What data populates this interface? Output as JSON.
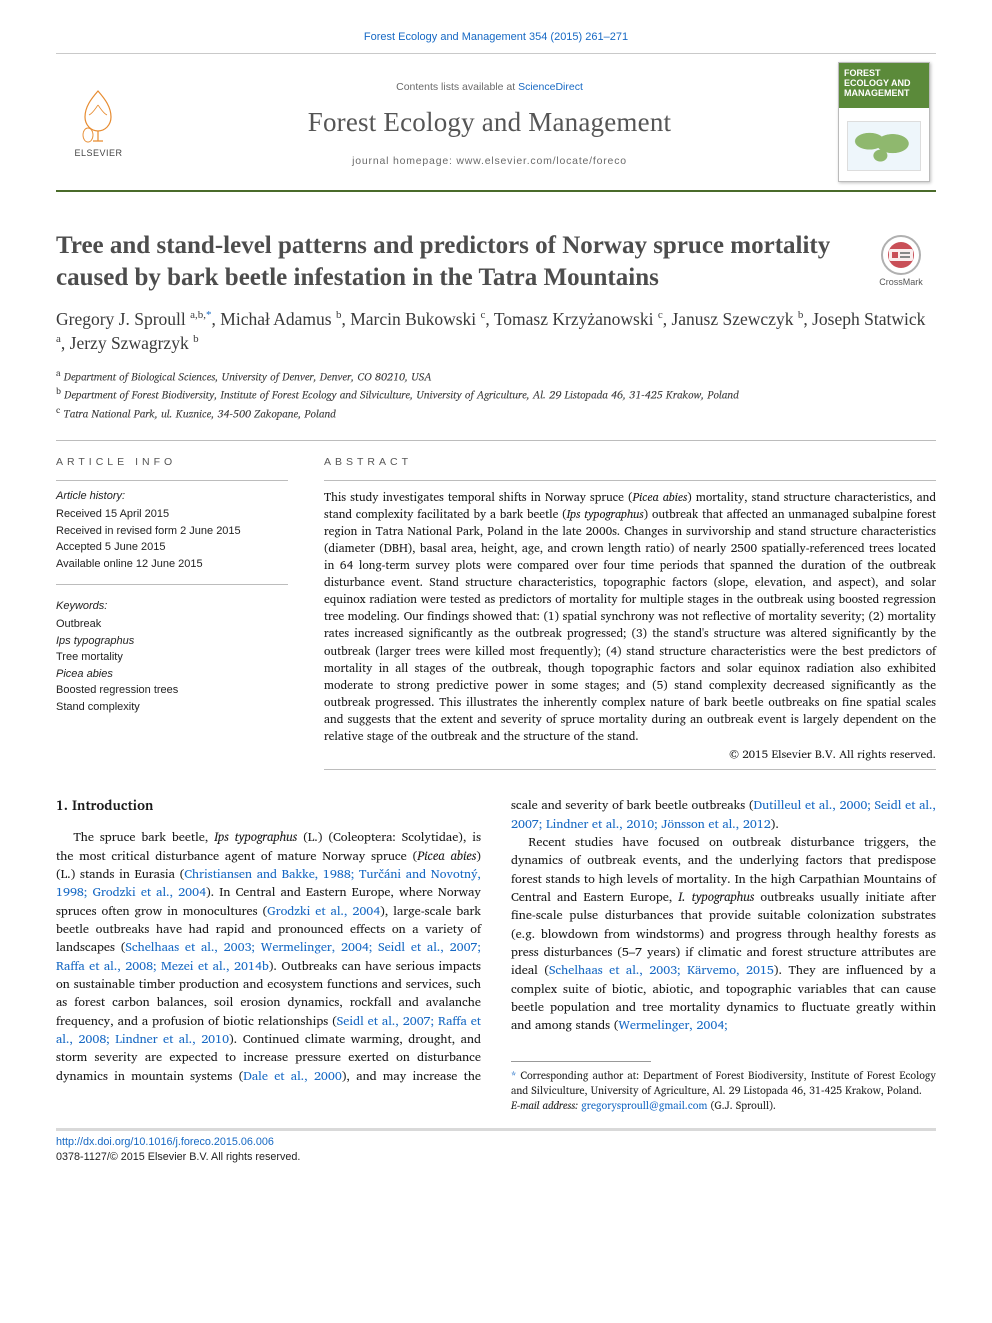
{
  "citation": "Forest Ecology and Management 354 (2015) 261–271",
  "publisher": {
    "name": "ELSEVIER"
  },
  "masthead": {
    "contents_prefix": "Contents lists available at ",
    "contents_link": "ScienceDirect",
    "journal_name": "Forest Ecology and Management",
    "homepage_label": "journal homepage: www.elsevier.com/locate/foreco",
    "cover_title": "FOREST ECOLOGY AND MANAGEMENT"
  },
  "crossmark_label": "CrossMark",
  "title": "Tree and stand-level patterns and predictors of Norway spruce mortality caused by bark beetle infestation in the Tatra Mountains",
  "authors_html": "Gregory J. Sproull <sup>a,b,</sup><sup class='ast'>*</sup>, Michał Adamus <sup>b</sup>, Marcin Bukowski <sup>c</sup>, Tomasz Krzyżanowski <sup>c</sup>, Janusz Szewczyk <sup>b</sup>, Joseph Statwick <sup>a</sup>, Jerzy Szwagrzyk <sup>b</sup>",
  "affiliations": [
    {
      "marker": "a",
      "text": "Department of Biological Sciences, University of Denver, Denver, CO 80210, USA"
    },
    {
      "marker": "b",
      "text": "Department of Forest Biodiversity, Institute of Forest Ecology and Silviculture, University of Agriculture, Al. 29 Listopada 46, 31-425 Krakow, Poland"
    },
    {
      "marker": "c",
      "text": "Tatra National Park, ul. Kuznice, 34-500 Zakopane, Poland"
    }
  ],
  "article_info": {
    "heading": "ARTICLE INFO",
    "history_label": "Article history:",
    "history": [
      "Received 15 April 2015",
      "Received in revised form 2 June 2015",
      "Accepted 5 June 2015",
      "Available online 12 June 2015"
    ],
    "keywords_label": "Keywords:",
    "keywords": [
      "Outbreak",
      "Ips typographus",
      "Tree mortality",
      "Picea abies",
      "Boosted regression trees",
      "Stand complexity"
    ]
  },
  "abstract": {
    "heading": "ABSTRACT",
    "text": "This study investigates temporal shifts in Norway spruce (Picea abies) mortality, stand structure characteristics, and stand complexity facilitated by a bark beetle (Ips typographus) outbreak that affected an unmanaged subalpine forest region in Tatra National Park, Poland in the late 2000s. Changes in survivorship and stand structure characteristics (diameter (DBH), basal area, height, age, and crown length ratio) of nearly 2500 spatially-referenced trees located in 64 long-term survey plots were compared over four time periods that spanned the duration of the outbreak disturbance event. Stand structure characteristics, topographic factors (slope, elevation, and aspect), and solar equinox radiation were tested as predictors of mortality for multiple stages in the outbreak using boosted regression tree modeling. Our findings showed that: (1) spatial synchrony was not reflective of mortality severity; (2) mortality rates increased significantly as the outbreak progressed; (3) the stand's structure was altered significantly by the outbreak (larger trees were killed most frequently); (4) stand structure characteristics were the best predictors of mortality in all stages of the outbreak, though topographic factors and solar equinox radiation also exhibited moderate to strong predictive power in some stages; and (5) stand complexity decreased significantly as the outbreak progressed. This illustrates the inherently complex nature of bark beetle outbreaks on fine spatial scales and suggests that the extent and severity of spruce mortality during an outbreak event is largely dependent on the relative stage of the outbreak and the structure of the stand.",
    "copyright": "© 2015 Elsevier B.V. All rights reserved."
  },
  "body": {
    "section_heading": "1. Introduction",
    "p1_pre": "The spruce bark beetle, ",
    "p1_em1": "Ips typographus",
    "p1_mid1": " (L.) (Coleoptera: Scolytidae), is the most critical disturbance agent of mature Norway spruce (",
    "p1_em2": "Picea abies",
    "p1_mid2": ") (L.) stands in Eurasia (",
    "p1_ref1": "Christiansen and Bakke, 1988; Turčáni and Novotný, 1998; Grodzki et al., 2004",
    "p1_mid3": "). In Central and Eastern Europe, where Norway spruces often grow in monocultures (",
    "p1_ref2": "Grodzki et al., 2004",
    "p1_mid4": "), large-scale bark beetle outbreaks have had rapid and pronounced effects on a variety of landscapes (",
    "p1_ref3": "Schelhaas et al., 2003; Wermelinger, 2004; Seidl et al., 2007; Raffa et al., 2008; Mezei et al., 2014b",
    "p1_mid5": "). Outbreaks can have serious impacts on sustainable timber production and ecosystem functions and services, such as forest carbon balances, soil erosion dynamics, rockfall and avalanche frequency, and a",
    "p1_tail": " profusion of biotic relationships (",
    "p1_ref4": "Seidl et al., 2007; Raffa et al., 2008; Lindner et al., 2010",
    "p1_mid6": "). Continued climate warming, drought, and storm severity are expected to increase pressure exerted on disturbance dynamics in mountain systems (",
    "p1_ref5": "Dale et al., 2000",
    "p1_mid7": "), and may increase the scale and severity of bark beetle outbreaks (",
    "p1_ref6": "Dutilleul et al., 2000; Seidl et al., 2007; Lindner et al., 2010; Jönsson et al., 2012",
    "p1_mid8": ").",
    "p2_pre": "Recent studies have focused on outbreak disturbance triggers, the dynamics of outbreak events, and the underlying factors that predispose forest stands to high levels of mortality. In the high Carpathian Mountains of Central and Eastern Europe, ",
    "p2_em1": "I. typographus",
    "p2_mid1": " outbreaks usually initiate after fine-scale pulse disturbances that provide suitable colonization substrates (e.g. blowdown from windstorms) and progress through healthy forests as press disturbances (5–7 years) if climatic and forest structure attributes are ideal (",
    "p2_ref1": "Schelhaas et al., 2003; Kärvemo, 2015",
    "p2_mid2": "). They are influenced by a complex suite of biotic, abiotic, and topographic variables that can cause beetle population and tree mortality dynamics to fluctuate greatly within and among stands (",
    "p2_ref2": "Wermelinger, 2004;",
    "p2_mid3": ""
  },
  "footnotes": {
    "corr": "Corresponding author at: Department of Forest Biodiversity, Institute of Forest Ecology and Silviculture, University of Agriculture, Al. 29 Listopada 46, 31-425 Krakow, Poland.",
    "email_label": "E-mail address: ",
    "email": "gregorysproull@gmail.com",
    "email_suffix": " (G.J. Sproull)."
  },
  "bottom": {
    "doi": "http://dx.doi.org/10.1016/j.foreco.2015.06.006",
    "issn_line": "0378-1127/© 2015 Elsevier B.V. All rights reserved."
  },
  "colors": {
    "link": "#1769c4",
    "rule_green": "#4a6b2a",
    "text": "#1a1a1a",
    "muted": "#6a6a6a"
  }
}
